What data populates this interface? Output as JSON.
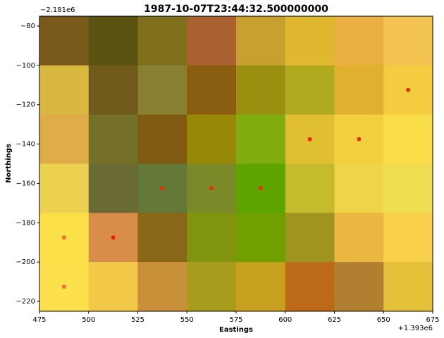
{
  "chart_data": {
    "type": "heatmap",
    "title": "1987-10-07T23:44:32.500000000",
    "xlabel": "Eastings",
    "ylabel": "Northings",
    "x_offset_text": "+1.393e6",
    "y_offset_text": "−2.181e6",
    "xlim": [
      475,
      675
    ],
    "ylim": [
      -225,
      -75
    ],
    "xticks": [
      475,
      500,
      525,
      550,
      575,
      600,
      625,
      650,
      675
    ],
    "yticks": [
      {
        "value": -80,
        "label": "−80"
      },
      {
        "value": -100,
        "label": "−100"
      },
      {
        "value": -120,
        "label": "−120"
      },
      {
        "value": -140,
        "label": "−140"
      },
      {
        "value": -160,
        "label": "−160"
      },
      {
        "value": -180,
        "label": "−180"
      },
      {
        "value": -200,
        "label": "−200"
      },
      {
        "value": -220,
        "label": "−220"
      }
    ],
    "x_edges": [
      475,
      500,
      525,
      550,
      575,
      600,
      625,
      650,
      675
    ],
    "y_edges": [
      -75,
      -100,
      -125,
      -150,
      -175,
      -200,
      -225
    ],
    "cells": [
      [
        "#7a5a1a",
        "#5a5210",
        "#80701e",
        "#aa6030",
        "#c8a030",
        "#e0b830",
        "#ecb040",
        "#f4c450"
      ],
      [
        "#d8b840",
        "#705a1c",
        "#888030",
        "#8a5e10",
        "#9a9010",
        "#b0aa20",
        "#e0b030",
        "#f4cc40"
      ],
      [
        "#e0ac48",
        "#747028",
        "#805a10",
        "#988808",
        "#80ac10",
        "#e0c030",
        "#f4d040",
        "#f8dc48"
      ],
      [
        "#ecd050",
        "#6a6a34",
        "#647838",
        "#7a8a28",
        "#5ea400",
        "#c4bc2c",
        "#f0d448",
        "#f0dc50"
      ],
      [
        "#fce048",
        "#d88e48",
        "#886818",
        "#809410",
        "#70a000",
        "#a09420",
        "#eab840",
        "#f8d04c"
      ],
      [
        "#fce04c",
        "#f4c848",
        "#c89038",
        "#a89c1c",
        "#c8a020",
        "#bc6a18",
        "#b08030",
        "#e4c038"
      ]
    ],
    "points": {
      "x": [
        662.5,
        612.5,
        637.5,
        537.5,
        562.5,
        587.5,
        487.5,
        512.5,
        487.5
      ],
      "y": [
        -112.5,
        -137.5,
        -137.5,
        -162.5,
        -162.5,
        -162.5,
        -187.5,
        -187.5,
        -212.5
      ],
      "colors": [
        "#e8300f",
        "#e8300f",
        "#e8300f",
        "#e8300f",
        "#e8300f",
        "#e8300f",
        "#f07030",
        "#e8200f",
        "#f07030"
      ]
    }
  }
}
